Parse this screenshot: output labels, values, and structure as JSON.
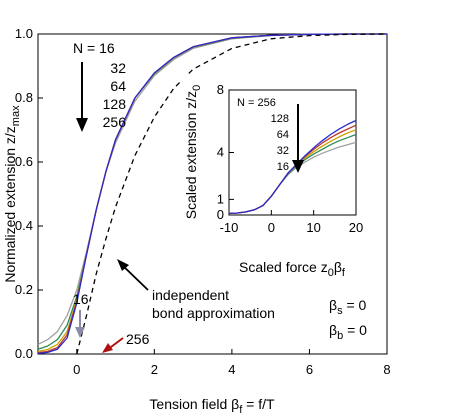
{
  "chart_data": [
    {
      "type": "line",
      "xlabel_main": "Tension field β",
      "xlabel_sub": "f",
      "xlabel_tail": " = f/T",
      "ylabel_main": "Normalized extension z/z",
      "ylabel_sub": "max",
      "xlim": [
        -1,
        8
      ],
      "ylim": [
        0,
        1
      ],
      "xticks": [
        0,
        2,
        4,
        6,
        8
      ],
      "yticks": [
        0.0,
        0.2,
        0.4,
        0.6,
        0.8,
        1.0
      ],
      "ytick_labels": [
        "0.0",
        "0.2",
        "0.4",
        "0.6",
        "0.8",
        "1.0"
      ],
      "legend_title": "N = 16",
      "legend_entries": [
        "32",
        "64",
        "128",
        "256"
      ],
      "series": [
        {
          "name": "16",
          "color": "#a0a0a0",
          "x": [
            -1,
            -0.75,
            -0.5,
            -0.25,
            0,
            0.25,
            0.5,
            0.75,
            1,
            1.5,
            2,
            2.5,
            3,
            4,
            5,
            6,
            7,
            8
          ],
          "y": [
            0.03,
            0.045,
            0.07,
            0.12,
            0.2,
            0.32,
            0.45,
            0.57,
            0.66,
            0.79,
            0.87,
            0.92,
            0.955,
            0.985,
            0.995,
            0.999,
            1.0,
            1.0
          ]
        },
        {
          "name": "32",
          "color": "#2e8b57",
          "x": [
            -1,
            -0.75,
            -0.5,
            -0.25,
            0,
            0.25,
            0.5,
            0.75,
            1,
            1.5,
            2,
            2.5,
            3,
            4,
            5,
            6,
            7,
            8
          ],
          "y": [
            0.015,
            0.025,
            0.045,
            0.09,
            0.18,
            0.31,
            0.45,
            0.57,
            0.67,
            0.8,
            0.875,
            0.925,
            0.958,
            0.987,
            0.996,
            0.999,
            1.0,
            1.0
          ]
        },
        {
          "name": "64",
          "color": "#c9a400",
          "x": [
            -1,
            -0.75,
            -0.5,
            -0.25,
            0,
            0.25,
            0.5,
            0.75,
            1,
            1.5,
            2,
            2.5,
            3,
            4,
            5,
            6,
            7,
            8
          ],
          "y": [
            0.008,
            0.014,
            0.03,
            0.07,
            0.17,
            0.31,
            0.45,
            0.57,
            0.67,
            0.8,
            0.877,
            0.926,
            0.959,
            0.988,
            0.996,
            0.999,
            1.0,
            1.0
          ]
        },
        {
          "name": "128",
          "color": "#c0392b",
          "x": [
            -1,
            -0.75,
            -0.5,
            -0.25,
            0,
            0.25,
            0.5,
            0.75,
            1,
            1.5,
            2,
            2.5,
            3,
            4,
            5,
            6,
            7,
            8
          ],
          "y": [
            0.004,
            0.008,
            0.02,
            0.06,
            0.165,
            0.31,
            0.45,
            0.57,
            0.67,
            0.8,
            0.878,
            0.927,
            0.96,
            0.988,
            0.996,
            0.999,
            1.0,
            1.0
          ]
        },
        {
          "name": "256",
          "color": "#2a2ad0",
          "x": [
            -1,
            -0.75,
            -0.5,
            -0.25,
            0,
            0.25,
            0.5,
            0.75,
            1,
            1.5,
            2,
            2.5,
            3,
            4,
            5,
            6,
            7,
            8
          ],
          "y": [
            0.002,
            0.005,
            0.015,
            0.05,
            0.16,
            0.31,
            0.45,
            0.57,
            0.67,
            0.8,
            0.878,
            0.927,
            0.96,
            0.988,
            0.996,
            0.999,
            1.0,
            1.0
          ]
        },
        {
          "name": "independent bond approximation",
          "color": "#000000",
          "dashed": true,
          "x": [
            0,
            0.25,
            0.5,
            0.75,
            1,
            1.5,
            2,
            2.5,
            3,
            4,
            5,
            6,
            7,
            8
          ],
          "y": [
            0.0,
            0.12,
            0.25,
            0.36,
            0.46,
            0.62,
            0.74,
            0.83,
            0.89,
            0.955,
            0.985,
            0.995,
            0.999,
            1.0
          ]
        }
      ],
      "annotations": {
        "ibaLine1": "independent",
        "ibaLine2": "bond approximation",
        "label16": "16",
        "label256": "256",
        "bsMain": "β",
        "bsSub": "s",
        "bsTail": " = 0",
        "bbMain": "β",
        "bbSub": "b",
        "bbTail": " = 0"
      },
      "colors": {
        "arrow16": "#8c8ca8",
        "arrow256": "#b01010"
      }
    },
    {
      "type": "line",
      "xlabel_main": "Scaled force z",
      "xlabel_sub1": "0",
      "xlabel_mid": "β",
      "xlabel_sub2": "f",
      "ylabel_main": "Scaled extension z/z",
      "ylabel_sub": "0",
      "xlim": [
        -10,
        20
      ],
      "ylim": [
        0,
        8
      ],
      "xticks": [
        -10,
        0,
        10,
        20
      ],
      "yticks": [
        0,
        1,
        4,
        8
      ],
      "legend_title": "N = 256",
      "legend_entries": [
        "128",
        "64",
        "32",
        "16"
      ],
      "series": [
        {
          "name": "16",
          "color": "#a0a0a0",
          "x": [
            -10,
            -8,
            -6,
            -4,
            -2,
            0,
            2,
            4,
            6,
            8,
            10,
            12,
            14,
            16,
            18,
            20
          ],
          "y": [
            0.1,
            0.13,
            0.2,
            0.33,
            0.6,
            1.2,
            1.95,
            2.6,
            3.05,
            3.4,
            3.7,
            3.95,
            4.15,
            4.35,
            4.5,
            4.65
          ]
        },
        {
          "name": "32",
          "color": "#2e8b57",
          "x": [
            -10,
            -8,
            -6,
            -4,
            -2,
            0,
            2,
            4,
            6,
            8,
            10,
            12,
            14,
            16,
            18,
            20
          ],
          "y": [
            0.1,
            0.13,
            0.2,
            0.33,
            0.6,
            1.2,
            1.95,
            2.65,
            3.15,
            3.55,
            3.9,
            4.2,
            4.5,
            4.75,
            4.95,
            5.15
          ]
        },
        {
          "name": "64",
          "color": "#c9a400",
          "x": [
            -10,
            -8,
            -6,
            -4,
            -2,
            0,
            2,
            4,
            6,
            8,
            10,
            12,
            14,
            16,
            18,
            20
          ],
          "y": [
            0.1,
            0.13,
            0.2,
            0.33,
            0.6,
            1.2,
            1.95,
            2.7,
            3.2,
            3.65,
            4.05,
            4.4,
            4.72,
            5.0,
            5.25,
            5.45
          ]
        },
        {
          "name": "128",
          "color": "#c0392b",
          "x": [
            -10,
            -8,
            -6,
            -4,
            -2,
            0,
            2,
            4,
            6,
            8,
            10,
            12,
            14,
            16,
            18,
            20
          ],
          "y": [
            0.1,
            0.13,
            0.2,
            0.33,
            0.6,
            1.2,
            1.95,
            2.7,
            3.25,
            3.75,
            4.2,
            4.6,
            4.95,
            5.25,
            5.5,
            5.75
          ]
        },
        {
          "name": "256",
          "color": "#2a2ad0",
          "x": [
            -10,
            -8,
            -6,
            -4,
            -2,
            0,
            2,
            4,
            6,
            8,
            10,
            12,
            14,
            16,
            18,
            20
          ],
          "y": [
            0.1,
            0.13,
            0.2,
            0.33,
            0.6,
            1.2,
            1.95,
            2.7,
            3.25,
            3.8,
            4.3,
            4.75,
            5.15,
            5.5,
            5.8,
            6.05
          ]
        }
      ]
    }
  ]
}
